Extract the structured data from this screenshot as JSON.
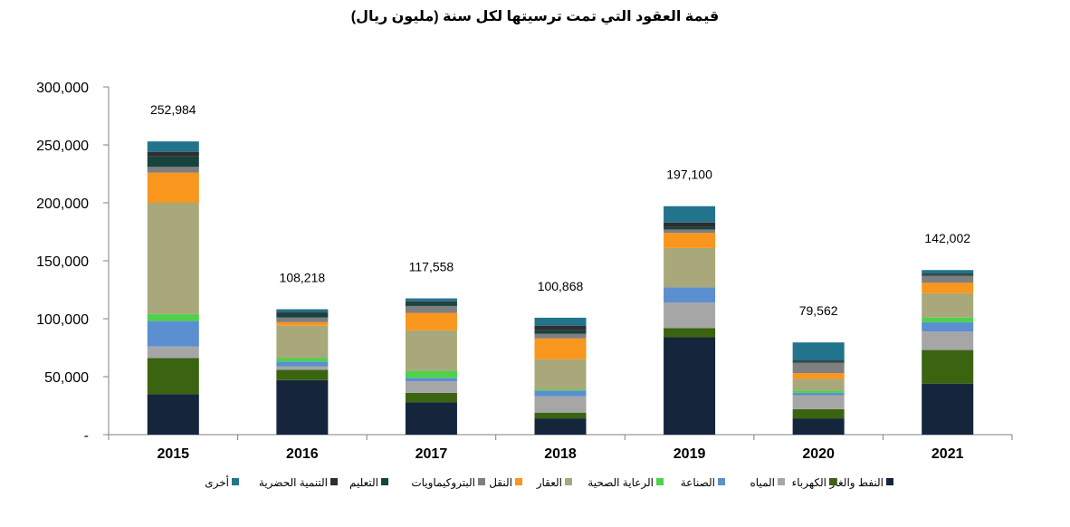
{
  "chart_data": {
    "type": "bar",
    "stacked": true,
    "title": "قيمة العقود التي تمت ترسيتها لكل سنة (مليون ريال)",
    "categories": [
      "2015",
      "2016",
      "2017",
      "2018",
      "2019",
      "2020",
      "2021"
    ],
    "totals": [
      "252,984",
      "108,218",
      "117,558",
      "100,868",
      "197,100",
      "79,562",
      "142,002"
    ],
    "yticks": [
      "-",
      "50,000",
      "100,000",
      "150,000",
      "200,000",
      "250,000",
      "300,000"
    ],
    "ylim": [
      0,
      300000
    ],
    "legend_position": "bottom",
    "series": [
      {
        "name": "النفط والغاز",
        "color": "#14253c",
        "values": [
          35000,
          47000,
          28000,
          14000,
          84000,
          14000,
          44000
        ]
      },
      {
        "name": "الكهرباء",
        "color": "#3a6410",
        "values": [
          31000,
          9000,
          8000,
          5000,
          8000,
          8000,
          29000
        ]
      },
      {
        "name": "المياه",
        "color": "#a6a6a6",
        "values": [
          10000,
          3000,
          10000,
          14000,
          22000,
          12000,
          16000
        ]
      },
      {
        "name": "الصناعة",
        "color": "#5b8fd0",
        "values": [
          22000,
          4000,
          3000,
          5000,
          13000,
          2000,
          8000
        ]
      },
      {
        "name": "الرعاية الصحية",
        "color": "#4fd14b",
        "values": [
          6000,
          3000,
          6000,
          1000,
          0,
          2000,
          4000
        ]
      },
      {
        "name": "العقار",
        "color": "#a8a87a",
        "values": [
          96000,
          28000,
          35000,
          26000,
          34000,
          10000,
          21000
        ]
      },
      {
        "name": "النقل",
        "color": "#f9961e",
        "values": [
          26000,
          3000,
          15000,
          18000,
          13000,
          5000,
          9000
        ]
      },
      {
        "name": "البتروكيماويات",
        "color": "#7f7f7f",
        "values": [
          5000,
          4000,
          6000,
          4000,
          3000,
          9000,
          6000
        ]
      },
      {
        "name": "التعليم",
        "color": "#17433f",
        "values": [
          9000,
          4000,
          3000,
          3000,
          2000,
          1000,
          1000
        ]
      },
      {
        "name": "التنمية الحضرية",
        "color": "#2e2e2e",
        "values": [
          4000,
          1000,
          1000,
          4000,
          4000,
          1000,
          1000
        ]
      },
      {
        "name": "أخرى",
        "color": "#22738c",
        "values": [
          8984,
          2218,
          2558,
          6868,
          14100,
          15562,
          3002
        ]
      }
    ]
  }
}
